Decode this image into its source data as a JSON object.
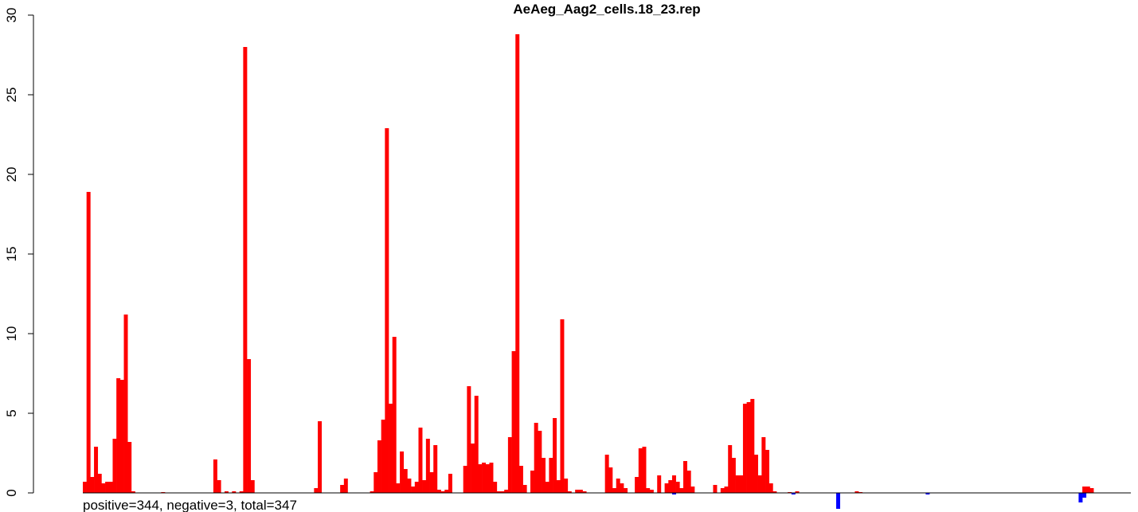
{
  "chart_data": {
    "type": "bar",
    "title": "AeAeg_Aag2_cells.18_23.rep",
    "xlabel": "",
    "ylabel": "",
    "ylim": [
      0,
      30
    ],
    "yticks": [
      "0",
      "5",
      "10",
      "15",
      "20",
      "25",
      "30"
    ],
    "grid": false,
    "footer": "positive=344, negative=3, total=347",
    "colors": {
      "positive": "#ff0000",
      "negative": "#0000ff",
      "baseline": "#000000"
    },
    "positive": [
      [
        1,
        0.7
      ],
      [
        2,
        18.9
      ],
      [
        3,
        1.0
      ],
      [
        4,
        2.9
      ],
      [
        5,
        1.2
      ],
      [
        6,
        0.6
      ],
      [
        7,
        0.7
      ],
      [
        8,
        0.7
      ],
      [
        9,
        3.4
      ],
      [
        10,
        7.2
      ],
      [
        11,
        7.1
      ],
      [
        12,
        11.2
      ],
      [
        13,
        3.2
      ],
      [
        14,
        0.1
      ],
      [
        22,
        0.05
      ],
      [
        36,
        2.1
      ],
      [
        37,
        0.8
      ],
      [
        39,
        0.1
      ],
      [
        41,
        0.1
      ],
      [
        43,
        0.1
      ],
      [
        44,
        28.0
      ],
      [
        45,
        8.4
      ],
      [
        46,
        0.8
      ],
      [
        63,
        0.3
      ],
      [
        64,
        4.5
      ],
      [
        70,
        0.5
      ],
      [
        71,
        0.9
      ],
      [
        78,
        0.1
      ],
      [
        79,
        1.3
      ],
      [
        80,
        3.3
      ],
      [
        81,
        4.6
      ],
      [
        82,
        22.9
      ],
      [
        83,
        5.6
      ],
      [
        84,
        9.8
      ],
      [
        85,
        0.6
      ],
      [
        86,
        2.6
      ],
      [
        87,
        1.5
      ],
      [
        88,
        0.9
      ],
      [
        89,
        0.4
      ],
      [
        90,
        0.7
      ],
      [
        91,
        4.1
      ],
      [
        92,
        0.8
      ],
      [
        93,
        3.4
      ],
      [
        94,
        1.3
      ],
      [
        95,
        3.0
      ],
      [
        96,
        0.2
      ],
      [
        97,
        0.1
      ],
      [
        98,
        0.2
      ],
      [
        99,
        1.2
      ],
      [
        103,
        1.7
      ],
      [
        104,
        6.7
      ],
      [
        105,
        3.1
      ],
      [
        106,
        6.1
      ],
      [
        107,
        1.8
      ],
      [
        108,
        1.9
      ],
      [
        109,
        1.8
      ],
      [
        110,
        1.9
      ],
      [
        111,
        0.7
      ],
      [
        112,
        0.1
      ],
      [
        113,
        0.1
      ],
      [
        114,
        0.2
      ],
      [
        115,
        3.5
      ],
      [
        116,
        8.9
      ],
      [
        117,
        28.8
      ],
      [
        118,
        1.7
      ],
      [
        119,
        0.5
      ],
      [
        121,
        1.4
      ],
      [
        122,
        4.4
      ],
      [
        123,
        3.9
      ],
      [
        124,
        2.2
      ],
      [
        125,
        0.7
      ],
      [
        126,
        2.2
      ],
      [
        127,
        4.7
      ],
      [
        128,
        0.8
      ],
      [
        129,
        10.9
      ],
      [
        130,
        0.9
      ],
      [
        131,
        0.1
      ],
      [
        133,
        0.2
      ],
      [
        134,
        0.2
      ],
      [
        135,
        0.1
      ],
      [
        141,
        2.4
      ],
      [
        142,
        1.6
      ],
      [
        143,
        0.3
      ],
      [
        144,
        0.9
      ],
      [
        145,
        0.6
      ],
      [
        146,
        0.3
      ],
      [
        149,
        1.0
      ],
      [
        150,
        2.8
      ],
      [
        151,
        2.9
      ],
      [
        152,
        0.3
      ],
      [
        153,
        0.2
      ],
      [
        155,
        1.1
      ],
      [
        157,
        0.6
      ],
      [
        158,
        0.8
      ],
      [
        159,
        1.1
      ],
      [
        160,
        0.7
      ],
      [
        161,
        0.3
      ],
      [
        162,
        2.0
      ],
      [
        163,
        1.4
      ],
      [
        164,
        0.4
      ],
      [
        170,
        0.5
      ],
      [
        172,
        0.3
      ],
      [
        173,
        0.4
      ],
      [
        174,
        3.0
      ],
      [
        175,
        2.2
      ],
      [
        176,
        1.1
      ],
      [
        177,
        1.1
      ],
      [
        178,
        5.6
      ],
      [
        179,
        5.7
      ],
      [
        180,
        5.9
      ],
      [
        181,
        2.4
      ],
      [
        182,
        1.1
      ],
      [
        183,
        3.5
      ],
      [
        184,
        2.7
      ],
      [
        185,
        0.6
      ],
      [
        186,
        0.1
      ],
      [
        190,
        0.05
      ],
      [
        192,
        0.1
      ],
      [
        208,
        0.1
      ],
      [
        209,
        0.05
      ],
      [
        269,
        0.4
      ],
      [
        270,
        0.4
      ],
      [
        271,
        0.3
      ]
    ],
    "negative": [
      [
        159,
        -0.1
      ],
      [
        191,
        -0.1
      ],
      [
        203,
        -1.0
      ],
      [
        227,
        -0.1
      ],
      [
        268,
        -0.6
      ],
      [
        269,
        -0.3
      ]
    ]
  }
}
